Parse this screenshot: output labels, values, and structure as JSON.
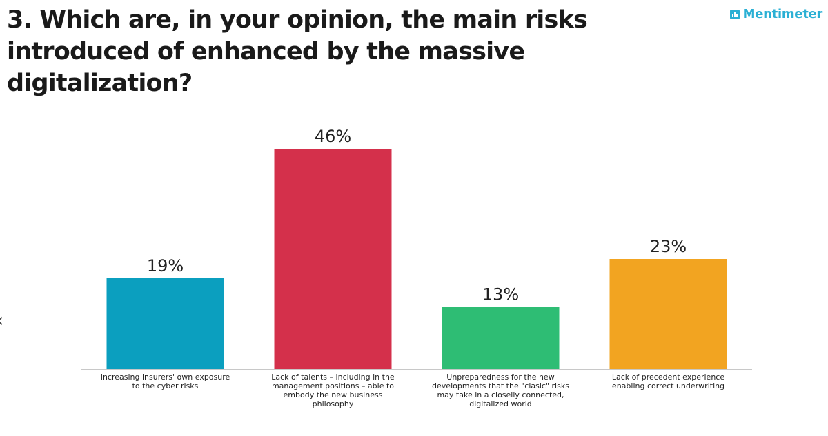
{
  "header": {
    "title": "3. Which are, in your opinion, the main risks introduced of enhanced by the massive digitalization?",
    "brand": "Mentimeter",
    "brand_icon": "bar-chart-icon",
    "brand_color": "#2bb0d4"
  },
  "nav": {
    "prev_icon": "chevron-left-icon",
    "prev_glyph": "‹"
  },
  "chart_data": {
    "type": "bar",
    "title": "3. Which are, in your opinion, the main risks introduced of enhanced by the massive digitalization?",
    "categories": [
      "Increasing insurers' own exposure to the cyber risks",
      "Lack of talents – including in the management positions – able to embody the new business philosophy",
      "Unpreparedness for the new developments that the \"clasic\" risks may take in a closelly connected, digitalized world",
      "Lack of precedent experience enabling correct underwriting"
    ],
    "values": [
      19,
      46,
      13,
      23
    ],
    "value_labels": [
      "19%",
      "46%",
      "13%",
      "23%"
    ],
    "colors": [
      "#0b9fbf",
      "#d4304b",
      "#2ebd74",
      "#f2a421"
    ],
    "unit": "%",
    "ylim": [
      0,
      50
    ],
    "grid": false,
    "legend": "none"
  }
}
